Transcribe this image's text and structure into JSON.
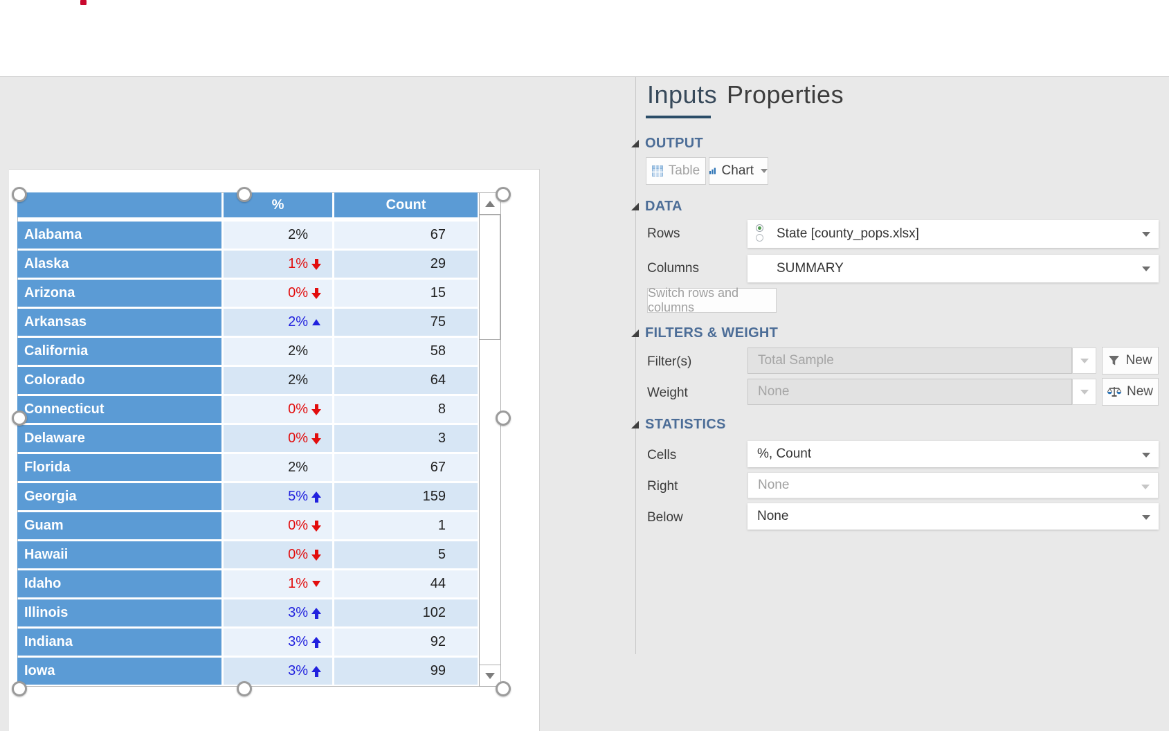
{
  "tabs": {
    "inputs": "Inputs",
    "properties": "Properties"
  },
  "sections": {
    "output": "OUTPUT",
    "data": "DATA",
    "filters": "FILTERS & WEIGHT",
    "statistics": "STATISTICS"
  },
  "output": {
    "table_label": "Table",
    "chart_label": "Chart"
  },
  "data_section": {
    "rows_label": "Rows",
    "rows_value": "State [county_pops.xlsx]",
    "columns_label": "Columns",
    "columns_value": "SUMMARY",
    "switch_label": "Switch rows and columns"
  },
  "filters": {
    "filter_label": "Filter(s)",
    "filter_value": "Total Sample",
    "filter_new_label": "New",
    "weight_label": "Weight",
    "weight_value": "None",
    "weight_new_label": "New"
  },
  "statistics": {
    "cells_label": "Cells",
    "cells_value": "%, Count",
    "right_label": "Right",
    "right_value": "None",
    "below_label": "Below",
    "below_value": "None"
  },
  "colors": {
    "header_blue": "#5b9bd5",
    "row_light": "#eaf2fb",
    "row_dark": "#d7e6f5",
    "significant_up": "#2121de",
    "significant_down": "#e20d0d",
    "section_header": "#4c6d97"
  },
  "table": {
    "headers": {
      "label": "",
      "pct": "%",
      "count": "Count"
    },
    "rows": [
      {
        "state": "Alabama",
        "pct": "2%",
        "trend": null,
        "color": "black",
        "count": "67"
      },
      {
        "state": "Alaska",
        "pct": "1%",
        "trend": "down-big",
        "color": "red",
        "count": "29"
      },
      {
        "state": "Arizona",
        "pct": "0%",
        "trend": "down-big",
        "color": "red",
        "count": "15"
      },
      {
        "state": "Arkansas",
        "pct": "2%",
        "trend": "up-small",
        "color": "blue",
        "count": "75"
      },
      {
        "state": "California",
        "pct": "2%",
        "trend": null,
        "color": "black",
        "count": "58"
      },
      {
        "state": "Colorado",
        "pct": "2%",
        "trend": null,
        "color": "black",
        "count": "64"
      },
      {
        "state": "Connecticut",
        "pct": "0%",
        "trend": "down-big",
        "color": "red",
        "count": "8"
      },
      {
        "state": "Delaware",
        "pct": "0%",
        "trend": "down-big",
        "color": "red",
        "count": "3"
      },
      {
        "state": "Florida",
        "pct": "2%",
        "trend": null,
        "color": "black",
        "count": "67"
      },
      {
        "state": "Georgia",
        "pct": "5%",
        "trend": "up-big",
        "color": "blue",
        "count": "159"
      },
      {
        "state": "Guam",
        "pct": "0%",
        "trend": "down-big",
        "color": "red",
        "count": "1"
      },
      {
        "state": "Hawaii",
        "pct": "0%",
        "trend": "down-big",
        "color": "red",
        "count": "5"
      },
      {
        "state": "Idaho",
        "pct": "1%",
        "trend": "down-small",
        "color": "red",
        "count": "44"
      },
      {
        "state": "Illinois",
        "pct": "3%",
        "trend": "up-big",
        "color": "blue",
        "count": "102"
      },
      {
        "state": "Indiana",
        "pct": "3%",
        "trend": "up-big",
        "color": "blue",
        "count": "92"
      },
      {
        "state": "Iowa",
        "pct": "3%",
        "trend": "up-big",
        "color": "blue",
        "count": "99"
      }
    ]
  }
}
